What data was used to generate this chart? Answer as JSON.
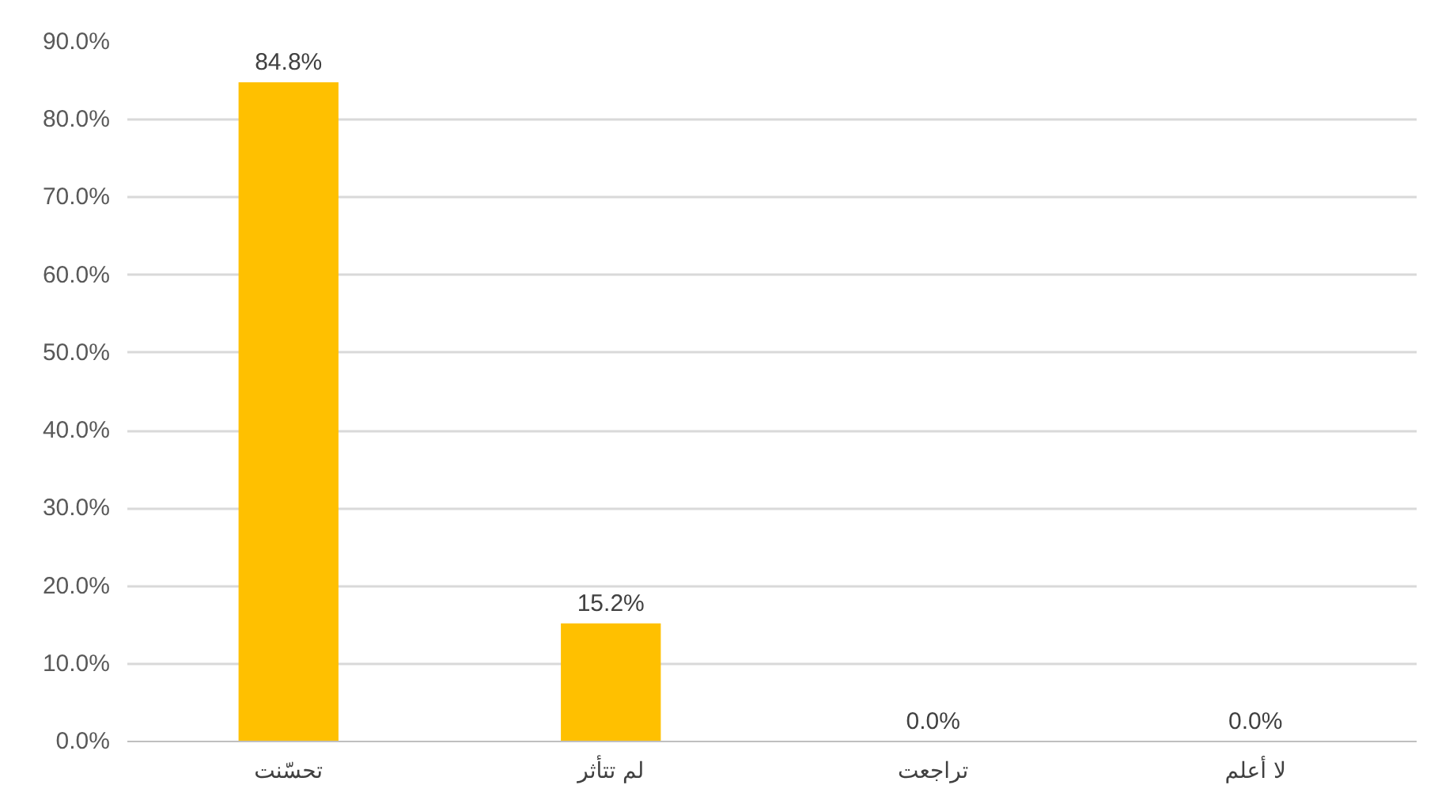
{
  "chart_data": {
    "type": "bar",
    "categories": [
      "تحسّنت",
      "لم تتأثر",
      "تراجعت",
      "لا أعلم"
    ],
    "values": [
      84.8,
      15.2,
      0,
      0
    ],
    "value_labels": [
      "84.8%",
      "15.2%",
      "0.0%",
      "0.0%"
    ],
    "color": "#ffc000",
    "ylim": [
      0,
      90
    ],
    "yticks": [
      {
        "value": 0,
        "label": "0.0%"
      },
      {
        "value": 10,
        "label": "10.0%"
      },
      {
        "value": 20,
        "label": "20.0%"
      },
      {
        "value": 30,
        "label": "30.0%"
      },
      {
        "value": 40,
        "label": "40.0%"
      },
      {
        "value": 50,
        "label": "50.0%"
      },
      {
        "value": 60,
        "label": "60.0%"
      },
      {
        "value": 70,
        "label": "70.0%"
      },
      {
        "value": 80,
        "label": "80.0%"
      },
      {
        "value": 90,
        "label": "90.0%"
      }
    ],
    "grid": "y"
  }
}
